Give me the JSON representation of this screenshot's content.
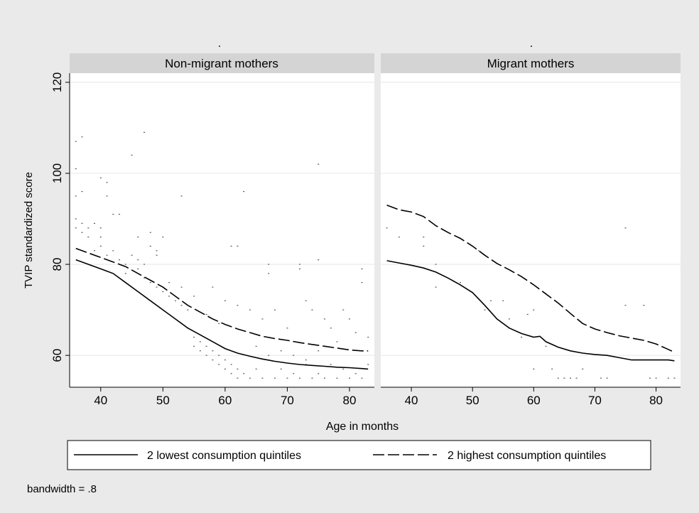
{
  "chart_data": {
    "type": "scatter",
    "colors": {
      "background": "#eaeaea",
      "strip": "#d4d4d4",
      "plot": "#ffffff",
      "grid": "#e6e6e6",
      "ink": "#000000"
    },
    "panel_markers": ".",
    "panels": [
      {
        "title": "Non-migrant mothers",
        "series": [
          {
            "name": "2 lowest consumption quintiles",
            "style": "solid",
            "x": [
              36,
              38,
              40,
              42,
              44,
              46,
              48,
              50,
              52,
              54,
              56,
              58,
              60,
              62,
              64,
              66,
              68,
              70,
              72,
              74,
              76,
              78,
              80,
              82,
              83
            ],
            "y": [
              81,
              80,
              79,
              78,
              76,
              74,
              72,
              70,
              68,
              66,
              64.5,
              63,
              61.5,
              60.5,
              59.8,
              59.2,
              58.7,
              58.3,
              58.0,
              57.8,
              57.6,
              57.4,
              57.3,
              57.1,
              57
            ]
          },
          {
            "name": "2 highest consumption quintiles",
            "style": "dashed",
            "x": [
              36,
              38,
              40,
              42,
              44,
              46,
              48,
              50,
              52,
              54,
              56,
              58,
              60,
              62,
              64,
              66,
              68,
              70,
              72,
              74,
              76,
              78,
              80,
              82,
              83
            ],
            "y": [
              83.5,
              82.5,
              81.5,
              80.5,
              79.5,
              78,
              76.5,
              75,
              73,
              71,
              69.5,
              68,
              66.8,
              65.8,
              65,
              64.2,
              63.7,
              63.3,
              62.8,
              62.4,
              62,
              61.6,
              61.2,
              61,
              61
            ]
          }
        ],
        "points": [
          [
            36,
            107
          ],
          [
            37,
            108
          ],
          [
            36,
            101
          ],
          [
            36,
            95
          ],
          [
            37,
            96
          ],
          [
            36,
            90
          ],
          [
            37,
            89
          ],
          [
            38,
            88
          ],
          [
            36,
            88
          ],
          [
            37,
            87
          ],
          [
            38,
            86
          ],
          [
            39,
            89
          ],
          [
            40,
            88
          ],
          [
            40,
            86
          ],
          [
            40,
            99
          ],
          [
            41,
            95
          ],
          [
            41,
            98
          ],
          [
            42,
            91
          ],
          [
            43,
            91
          ],
          [
            39,
            83
          ],
          [
            40,
            84
          ],
          [
            41,
            82
          ],
          [
            42,
            83
          ],
          [
            43,
            81
          ],
          [
            44,
            80
          ],
          [
            45,
            104
          ],
          [
            46,
            86
          ],
          [
            47,
            109
          ],
          [
            48,
            87
          ],
          [
            48,
            84
          ],
          [
            49,
            83
          ],
          [
            49,
            82
          ],
          [
            50,
            86
          ],
          [
            45,
            82
          ],
          [
            46,
            81
          ],
          [
            47,
            80
          ],
          [
            47,
            77
          ],
          [
            48,
            76
          ],
          [
            49,
            75
          ],
          [
            50,
            74
          ],
          [
            51,
            73
          ],
          [
            52,
            72
          ],
          [
            53,
            95
          ],
          [
            53,
            71
          ],
          [
            54,
            70
          ],
          [
            54,
            66
          ],
          [
            55,
            64
          ],
          [
            55,
            62
          ],
          [
            56,
            63
          ],
          [
            56,
            61
          ],
          [
            57,
            62
          ],
          [
            57,
            60
          ],
          [
            58,
            61
          ],
          [
            58,
            59
          ],
          [
            59,
            60
          ],
          [
            59,
            58
          ],
          [
            60,
            59
          ],
          [
            60,
            57
          ],
          [
            61,
            58
          ],
          [
            61,
            56
          ],
          [
            62,
            57
          ],
          [
            62,
            55
          ],
          [
            63,
            56
          ],
          [
            63,
            96
          ],
          [
            64,
            55
          ],
          [
            65,
            57
          ],
          [
            61,
            84
          ],
          [
            62,
            84
          ],
          [
            58,
            75
          ],
          [
            60,
            72
          ],
          [
            62,
            71
          ],
          [
            64,
            70
          ],
          [
            66,
            68
          ],
          [
            67,
            80
          ],
          [
            67,
            78
          ],
          [
            68,
            70
          ],
          [
            70,
            66
          ],
          [
            71,
            63
          ],
          [
            72,
            80
          ],
          [
            72,
            79
          ],
          [
            73,
            72
          ],
          [
            74,
            70
          ],
          [
            75,
            81
          ],
          [
            75,
            102
          ],
          [
            75,
            61
          ],
          [
            76,
            68
          ],
          [
            77,
            66
          ],
          [
            78,
            63
          ],
          [
            79,
            70
          ],
          [
            80,
            68
          ],
          [
            81,
            65
          ],
          [
            82,
            79
          ],
          [
            82,
            76
          ],
          [
            83,
            64
          ],
          [
            66,
            55
          ],
          [
            68,
            55
          ],
          [
            70,
            55
          ],
          [
            72,
            55
          ],
          [
            74,
            55
          ],
          [
            76,
            55
          ],
          [
            78,
            55
          ],
          [
            80,
            55
          ],
          [
            82,
            55
          ],
          [
            69,
            57
          ],
          [
            71,
            56
          ],
          [
            73,
            58
          ],
          [
            75,
            56
          ],
          [
            77,
            58
          ],
          [
            79,
            57
          ],
          [
            81,
            56
          ],
          [
            83,
            58
          ],
          [
            65,
            62
          ],
          [
            67,
            60
          ],
          [
            69,
            61
          ],
          [
            71,
            60
          ],
          [
            73,
            59
          ],
          [
            44,
            78
          ],
          [
            46,
            79
          ],
          [
            51,
            76
          ],
          [
            53,
            75
          ],
          [
            55,
            73
          ],
          [
            57,
            69
          ],
          [
            59,
            67
          ]
        ]
      },
      {
        "title": "Migrant mothers",
        "series": [
          {
            "name": "2 lowest consumption quintiles",
            "style": "solid",
            "x": [
              36,
              38,
              40,
              42,
              44,
              46,
              48,
              50,
              52,
              54,
              56,
              58,
              60,
              61,
              62,
              64,
              66,
              68,
              70,
              72,
              74,
              76,
              78,
              80,
              82,
              83
            ],
            "y": [
              80.8,
              80.3,
              79.8,
              79.2,
              78.3,
              77,
              75.5,
              73.8,
              71,
              68,
              66,
              64.8,
              64,
              64.2,
              63,
              61.8,
              61,
              60.5,
              60.2,
              60,
              59.5,
              59,
              59,
              59,
              59,
              58.8
            ]
          },
          {
            "name": "2 highest consumption quintiles",
            "style": "dashed",
            "x": [
              36,
              38,
              40,
              42,
              44,
              46,
              48,
              50,
              52,
              54,
              56,
              58,
              60,
              62,
              64,
              66,
              68,
              70,
              72,
              74,
              76,
              78,
              80,
              82,
              83
            ],
            "y": [
              93,
              92,
              91.5,
              90.5,
              88.5,
              87,
              85.7,
              84,
              82,
              80.2,
              78.8,
              77.3,
              75.5,
              73.5,
              71.5,
              69.2,
              67,
              65.8,
              65,
              64.3,
              63.8,
              63.3,
              62.5,
              61.3,
              60.7
            ]
          }
        ],
        "points": [
          [
            36,
            88
          ],
          [
            38,
            86
          ],
          [
            42,
            86
          ],
          [
            42,
            84
          ],
          [
            44,
            80
          ],
          [
            44,
            75
          ],
          [
            48,
            76
          ],
          [
            51,
            83
          ],
          [
            52,
            70
          ],
          [
            53,
            72
          ],
          [
            55,
            72
          ],
          [
            56,
            68
          ],
          [
            58,
            64
          ],
          [
            59,
            69
          ],
          [
            60,
            70
          ],
          [
            60,
            57
          ],
          [
            62,
            62
          ],
          [
            63,
            57
          ],
          [
            64,
            55
          ],
          [
            65,
            55
          ],
          [
            66,
            55
          ],
          [
            67,
            55
          ],
          [
            68,
            57
          ],
          [
            71,
            55
          ],
          [
            72,
            55
          ],
          [
            75,
            88
          ],
          [
            75,
            71
          ],
          [
            78,
            71
          ],
          [
            79,
            55
          ],
          [
            80,
            55
          ],
          [
            82,
            55
          ],
          [
            83,
            55
          ]
        ]
      }
    ],
    "xlim": [
      35,
      84
    ],
    "ylim": [
      53,
      122
    ],
    "xticks": [
      40,
      50,
      60,
      70,
      80
    ],
    "yticks": [
      60,
      80,
      100,
      120
    ],
    "xlabel": "Age in months",
    "ylabel": "TVIP standardized score",
    "legend": [
      "2 lowest consumption quintiles",
      "2 highest consumption quintiles"
    ],
    "note": "bandwidth = .8"
  }
}
